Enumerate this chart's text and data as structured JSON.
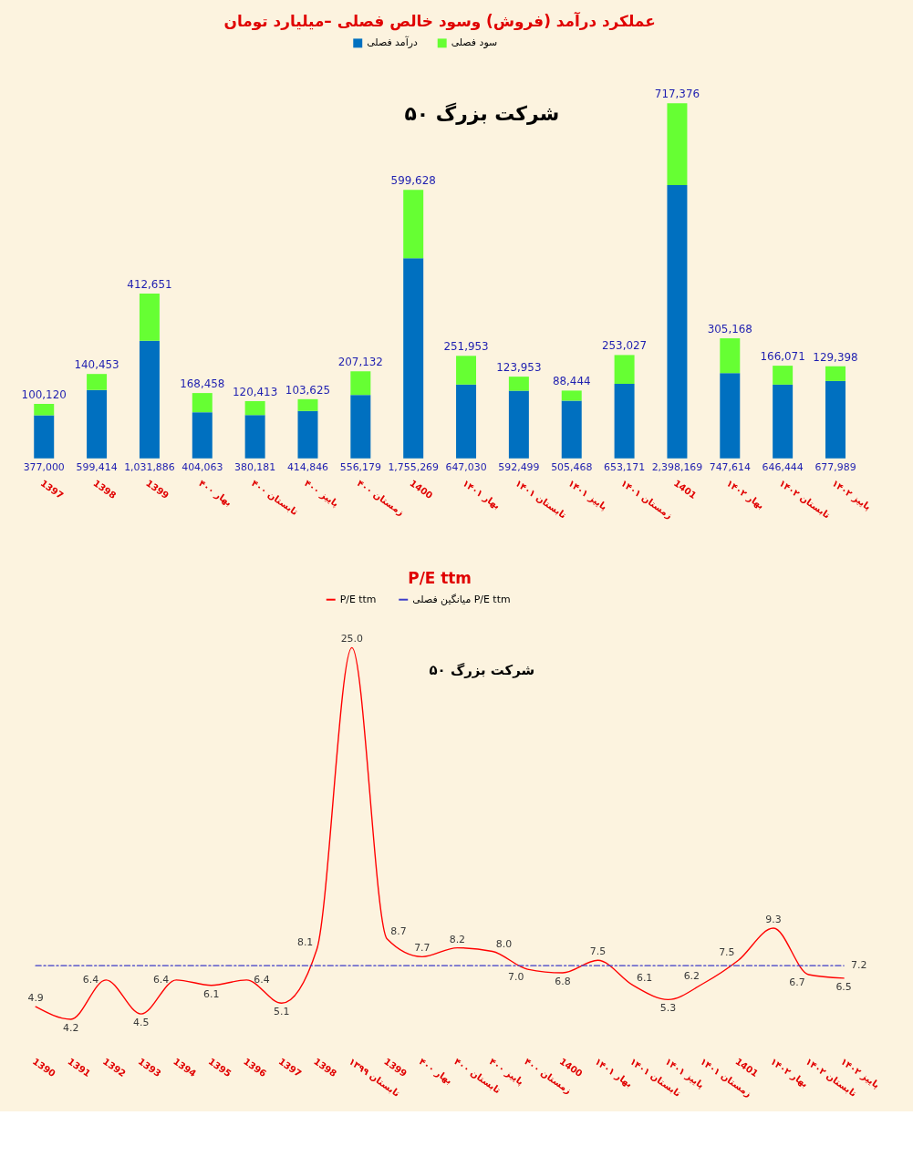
{
  "chart_data": [
    {
      "type": "bar",
      "title": "عملکرد درآمد (فروش) وسود خالص فصلی –میلیارد تومان",
      "annotations": [
        "۵۰ شرکت بزرگ"
      ],
      "categories": [
        "1397",
        "1398",
        "1399",
        "بهار ۴۰۰",
        "تابستان ۴۰۰",
        "پاییز ۴۰۰",
        "زمستان ۴۰۰",
        "1400",
        "بهار ۱۴۰۱",
        "تابستان ۱۴۰۱",
        "پاییز ۱۴۰۱",
        "زمستان ۱۴۰۱",
        "1401",
        "بهار ۱۴۰۲",
        "تابستان ۱۴۰۲",
        "پاییز ۱۴۰۲"
      ],
      "stacked": true,
      "series": [
        {
          "name": "درآمد فصلی",
          "color": "#0070c0",
          "values": [
            377000,
            599414,
            1031886,
            404063,
            380181,
            414846,
            556179,
            1755269,
            647030,
            592499,
            505468,
            653171,
            2398169,
            747614,
            646444,
            677989
          ],
          "value_labels": [
            "377,000",
            "599,414",
            "1,031,886",
            "404,063",
            "380,181",
            "414,846",
            "556,179",
            "1,755,269",
            "647,030",
            "592,499",
            "505,468",
            "653,171",
            "2,398,169",
            "747,614",
            "646,444",
            "677,989"
          ]
        },
        {
          "name": "سود فصلی",
          "color": "#66ff33",
          "values": [
            100120,
            140453,
            412651,
            168458,
            120413,
            103625,
            207132,
            599628,
            251953,
            123953,
            88444,
            253027,
            717376,
            305168,
            166071,
            129398
          ],
          "value_labels": [
            "100,120",
            "140,453",
            "412,651",
            "168,458",
            "120,413",
            "103,625",
            "207,132",
            "599,628",
            "251,953",
            "123,953",
            "88,444",
            "253,027",
            "717,376",
            "305,168",
            "166,071",
            "129,398"
          ]
        }
      ],
      "legend": "top",
      "tick_labels": "x"
    },
    {
      "type": "line",
      "title": "P/E ttm",
      "annotations": [
        "۵۰ شرکت بزرگ"
      ],
      "categories": [
        "1390",
        "1391",
        "1392",
        "1393",
        "1394",
        "1395",
        "1396",
        "1397",
        "1398",
        "تابستان ۱۳۹۹",
        "1399",
        "بهار ۴۰۰",
        "تابستان ۴۰۰",
        "پاییز ۴۰۰",
        "زمستان ۴۰۰",
        "1400",
        "بهار ۱۴۰۱",
        "تابستان ۱۴۰۱",
        "پاییز ۱۴۰۱",
        "زمستان ۱۴۰۱",
        "1401",
        "بهار ۱۴۰۲",
        "تابستان ۱۴۰۲",
        "پاییز ۱۴۰۲"
      ],
      "series": [
        {
          "name": "P/E ttm",
          "color": "#ff0000",
          "values": [
            4.9,
            4.2,
            6.4,
            4.5,
            6.4,
            6.1,
            6.4,
            5.1,
            8.1,
            25.0,
            8.7,
            7.7,
            8.2,
            8.0,
            7.0,
            6.8,
            7.5,
            6.1,
            5.3,
            6.2,
            7.5,
            9.3,
            6.7,
            6.5
          ],
          "value_labels": [
            "4.9",
            "4.2",
            "6.4",
            "4.5",
            "6.4",
            "6.1",
            "6.4",
            "5.1",
            "8.1",
            "25.0",
            "8.7",
            "7.7",
            "8.2",
            "8.0",
            "7.0",
            "6.8",
            "7.5",
            "6.1",
            "5.3",
            "6.2",
            "7.5",
            "9.3",
            "6.7",
            "6.5"
          ]
        },
        {
          "name": "میانگین فصلی P/E ttm",
          "color": "#3c3cc8",
          "line_style": "dashed",
          "values": [
            7.2,
            7.2,
            7.2,
            7.2,
            7.2,
            7.2,
            7.2,
            7.2,
            7.2,
            7.2,
            7.2,
            7.2,
            7.2,
            7.2,
            7.2,
            7.2,
            7.2,
            7.2,
            7.2,
            7.2,
            7.2,
            7.2,
            7.2,
            7.2
          ],
          "value_labels": [
            null,
            null,
            null,
            null,
            null,
            null,
            null,
            null,
            null,
            null,
            null,
            null,
            null,
            null,
            null,
            null,
            null,
            null,
            null,
            null,
            null,
            null,
            null,
            "7.2"
          ]
        }
      ],
      "legend": "top",
      "tick_labels": "x"
    }
  ]
}
